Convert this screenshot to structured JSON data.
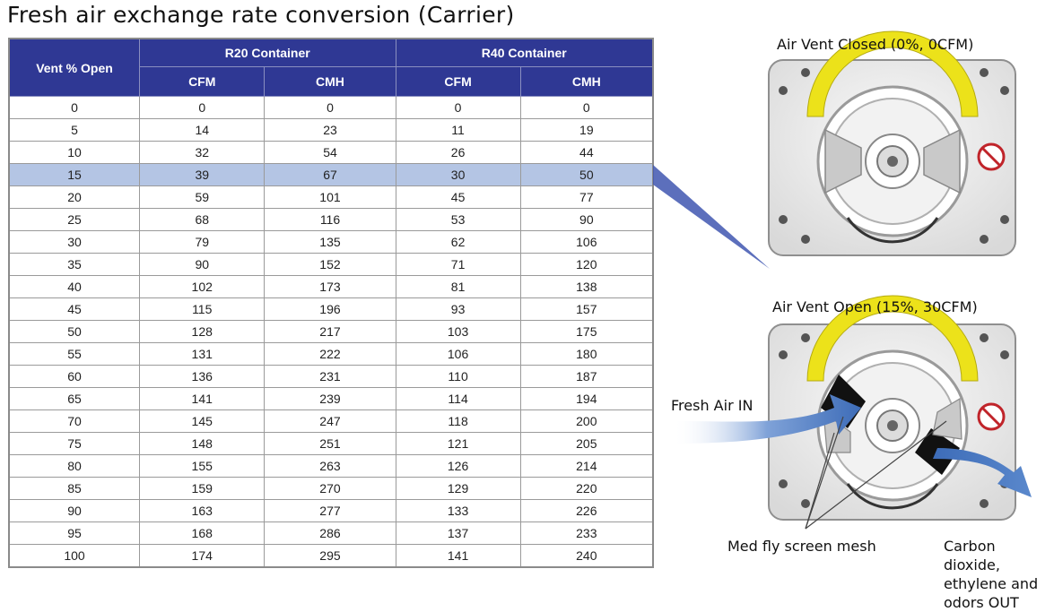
{
  "title": "Fresh air exchange rate conversion (Carrier)",
  "table": {
    "vent_header": "Vent % Open",
    "groups": [
      "R20 Container",
      "R40 Container"
    ],
    "subheaders": [
      "CFM",
      "CMH",
      "CFM",
      "CMH"
    ],
    "highlighted_row": 3,
    "rows": [
      [
        "0",
        "0",
        "0",
        "0",
        "0"
      ],
      [
        "5",
        "14",
        "23",
        "11",
        "19"
      ],
      [
        "10",
        "32",
        "54",
        "26",
        "44"
      ],
      [
        "15",
        "39",
        "67",
        "30",
        "50"
      ],
      [
        "20",
        "59",
        "101",
        "45",
        "77"
      ],
      [
        "25",
        "68",
        "116",
        "53",
        "90"
      ],
      [
        "30",
        "79",
        "135",
        "62",
        "106"
      ],
      [
        "35",
        "90",
        "152",
        "71",
        "120"
      ],
      [
        "40",
        "102",
        "173",
        "81",
        "138"
      ],
      [
        "45",
        "115",
        "196",
        "93",
        "157"
      ],
      [
        "50",
        "128",
        "217",
        "103",
        "175"
      ],
      [
        "55",
        "131",
        "222",
        "106",
        "180"
      ],
      [
        "60",
        "136",
        "231",
        "110",
        "187"
      ],
      [
        "65",
        "141",
        "239",
        "114",
        "194"
      ],
      [
        "70",
        "145",
        "247",
        "118",
        "200"
      ],
      [
        "75",
        "148",
        "251",
        "121",
        "205"
      ],
      [
        "80",
        "155",
        "263",
        "126",
        "214"
      ],
      [
        "85",
        "159",
        "270",
        "129",
        "220"
      ],
      [
        "90",
        "163",
        "277",
        "133",
        "226"
      ],
      [
        "95",
        "168",
        "286",
        "137",
        "233"
      ],
      [
        "100",
        "174",
        "295",
        "141",
        "240"
      ]
    ]
  },
  "illustrations": {
    "closed_label": "Air Vent Closed (0%, 0CFM)",
    "open_label": "Air Vent Open (15%, 30CFM)",
    "fresh_air_label": "Fresh Air IN",
    "mesh_label": "Med fly screen mesh",
    "exhaust_label_lines": [
      "Carbon dioxide,",
      "ethylene and",
      "odors OUT"
    ],
    "colors": {
      "header": "#2f3894",
      "highlight": "#b4c5e4",
      "dial_yellow": "#ece21a",
      "arrow_blue": "#4a78c0",
      "no_symbol_red": "#c0242a"
    }
  }
}
